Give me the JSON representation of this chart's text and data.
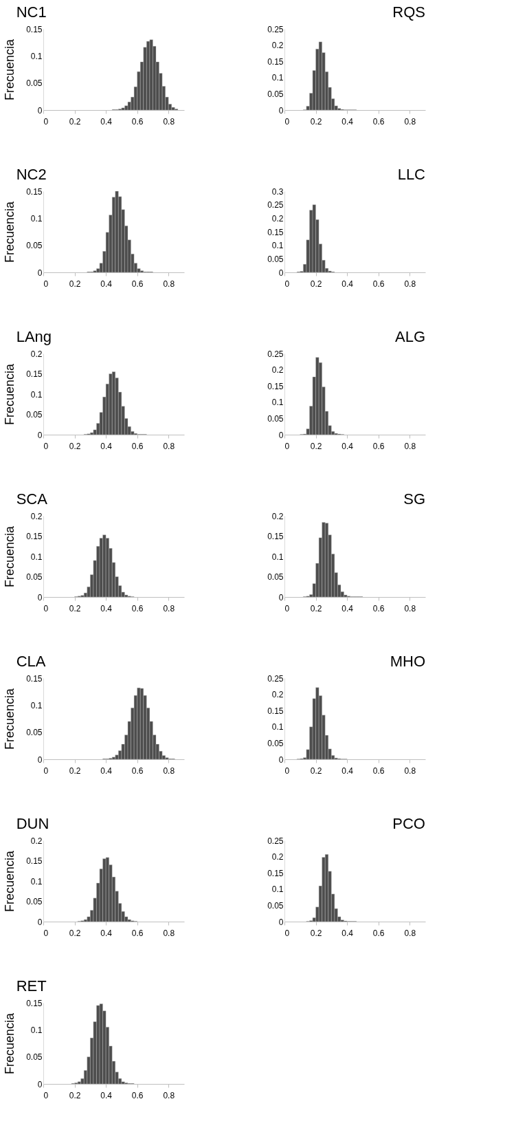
{
  "chart_data": [
    {
      "type": "histogram",
      "title": "NC1",
      "ylabel": "Frecuencia",
      "color": "#4d4d4d",
      "xlim": [
        0,
        0.9
      ],
      "xticks": [
        0,
        0.2,
        0.4,
        0.6,
        0.8
      ],
      "ylim": [
        0,
        0.15
      ],
      "yticks": [
        0,
        0.05,
        0.1,
        0.15
      ],
      "bins": [
        0.44,
        0.46,
        0.48,
        0.5,
        0.52,
        0.54,
        0.56,
        0.58,
        0.6,
        0.62,
        0.64,
        0.66,
        0.68,
        0.7,
        0.72,
        0.74,
        0.76,
        0.78,
        0.8,
        0.82,
        0.84,
        0.86
      ],
      "values": [
        0.001,
        0.001,
        0.002,
        0.004,
        0.008,
        0.015,
        0.024,
        0.043,
        0.071,
        0.089,
        0.116,
        0.127,
        0.13,
        0.118,
        0.089,
        0.068,
        0.044,
        0.024,
        0.011,
        0.005,
        0.002
      ]
    },
    {
      "type": "histogram",
      "title": "RQS",
      "color": "#4d4d4d",
      "xlim": [
        0,
        0.9
      ],
      "xticks": [
        0,
        0.2,
        0.4,
        0.6,
        0.8
      ],
      "ylim": [
        0,
        0.25
      ],
      "yticks": [
        0,
        0.05,
        0.1,
        0.15,
        0.2,
        0.25
      ],
      "bins": [
        0.12,
        0.14,
        0.16,
        0.18,
        0.2,
        0.22,
        0.24,
        0.26,
        0.28,
        0.3,
        0.32,
        0.34,
        0.36,
        0.38,
        0.4,
        0.42,
        0.44,
        0.46
      ],
      "values": [
        0.001,
        0.012,
        0.052,
        0.122,
        0.188,
        0.21,
        0.177,
        0.118,
        0.07,
        0.035,
        0.013,
        0.005,
        0.002,
        0.001,
        0.001,
        0.001,
        0.001
      ]
    },
    {
      "type": "histogram",
      "title": "NC2",
      "ylabel": "Frecuencia",
      "color": "#4d4d4d",
      "xlim": [
        0,
        0.9
      ],
      "xticks": [
        0,
        0.2,
        0.4,
        0.6,
        0.8
      ],
      "ylim": [
        0,
        0.15
      ],
      "yticks": [
        0,
        0.05,
        0.1,
        0.15
      ],
      "bins": [
        0.28,
        0.3,
        0.32,
        0.34,
        0.36,
        0.38,
        0.4,
        0.42,
        0.44,
        0.46,
        0.48,
        0.5,
        0.52,
        0.54,
        0.56,
        0.58,
        0.6,
        0.62,
        0.64,
        0.66,
        0.68,
        0.7
      ],
      "values": [
        0.001,
        0.001,
        0.003,
        0.007,
        0.017,
        0.039,
        0.074,
        0.106,
        0.139,
        0.15,
        0.14,
        0.116,
        0.086,
        0.06,
        0.034,
        0.017,
        0.007,
        0.003,
        0.001,
        0.001,
        0.001
      ]
    },
    {
      "type": "histogram",
      "title": "LLC",
      "color": "#4d4d4d",
      "xlim": [
        0,
        0.9
      ],
      "xticks": [
        0,
        0.2,
        0.4,
        0.6,
        0.8
      ],
      "ylim": [
        0,
        0.3
      ],
      "yticks": [
        0,
        0.05,
        0.1,
        0.15,
        0.2,
        0.25,
        0.3
      ],
      "bins": [
        0.08,
        0.1,
        0.12,
        0.14,
        0.16,
        0.18,
        0.2,
        0.22,
        0.24,
        0.26,
        0.28,
        0.3,
        0.32,
        0.34,
        0.36
      ],
      "values": [
        0.002,
        0.004,
        0.03,
        0.12,
        0.23,
        0.25,
        0.195,
        0.105,
        0.045,
        0.015,
        0.005,
        0.002,
        null,
        null
      ]
    },
    {
      "type": "histogram",
      "title": "LAng",
      "ylabel": "Frecuencia",
      "color": "#4d4d4d",
      "xlim": [
        0,
        0.9
      ],
      "xticks": [
        0,
        0.2,
        0.4,
        0.6,
        0.8
      ],
      "ylim": [
        0,
        0.2
      ],
      "yticks": [
        0,
        0.05,
        0.1,
        0.15,
        0.2
      ],
      "bins": [
        0.26,
        0.28,
        0.3,
        0.32,
        0.34,
        0.36,
        0.38,
        0.4,
        0.42,
        0.44,
        0.46,
        0.48,
        0.5,
        0.52,
        0.54,
        0.56,
        0.58,
        0.6,
        0.62,
        0.64,
        0.66
      ],
      "values": [
        0.001,
        0.002,
        0.005,
        0.012,
        0.028,
        0.055,
        0.093,
        0.125,
        0.15,
        0.155,
        0.14,
        0.105,
        0.07,
        0.04,
        0.02,
        0.008,
        0.003,
        0.001,
        0.001,
        0.001
      ]
    },
    {
      "type": "histogram",
      "title": "ALG",
      "color": "#4d4d4d",
      "xlim": [
        0,
        0.9
      ],
      "xticks": [
        0,
        0.2,
        0.4,
        0.6,
        0.8
      ],
      "ylim": [
        0,
        0.25
      ],
      "yticks": [
        0,
        0.05,
        0.1,
        0.15,
        0.2,
        0.25
      ],
      "bins": [
        0.1,
        0.12,
        0.14,
        0.16,
        0.18,
        0.2,
        0.22,
        0.24,
        0.26,
        0.28,
        0.3,
        0.32,
        0.34,
        0.36,
        0.38
      ],
      "values": [
        0.001,
        0.002,
        0.018,
        0.088,
        0.178,
        0.238,
        0.222,
        0.147,
        0.072,
        0.028,
        0.01,
        0.004,
        0.002,
        0.001
      ]
    },
    {
      "type": "histogram",
      "title": "SCA",
      "ylabel": "Frecuencia",
      "color": "#4d4d4d",
      "xlim": [
        0,
        0.9
      ],
      "xticks": [
        0,
        0.2,
        0.4,
        0.6,
        0.8
      ],
      "ylim": [
        0,
        0.2
      ],
      "yticks": [
        0,
        0.05,
        0.1,
        0.15,
        0.2
      ],
      "bins": [
        0.2,
        0.22,
        0.24,
        0.26,
        0.28,
        0.3,
        0.32,
        0.34,
        0.36,
        0.38,
        0.4,
        0.42,
        0.44,
        0.46,
        0.48,
        0.5,
        0.52,
        0.54,
        0.56,
        0.58
      ],
      "values": [
        0.001,
        0.002,
        0.004,
        0.01,
        0.025,
        0.055,
        0.09,
        0.125,
        0.145,
        0.153,
        0.145,
        0.12,
        0.085,
        0.05,
        0.028,
        0.012,
        0.005,
        0.002,
        0.001
      ]
    },
    {
      "type": "histogram",
      "title": "SG",
      "color": "#4d4d4d",
      "xlim": [
        0,
        0.9
      ],
      "xticks": [
        0,
        0.2,
        0.4,
        0.6,
        0.8
      ],
      "ylim": [
        0,
        0.2
      ],
      "yticks": [
        0,
        0.05,
        0.1,
        0.15,
        0.2
      ],
      "bins": [
        0.12,
        0.14,
        0.16,
        0.18,
        0.2,
        0.22,
        0.24,
        0.26,
        0.28,
        0.3,
        0.32,
        0.34,
        0.36,
        0.38,
        0.4,
        0.42,
        0.44,
        0.46,
        0.48,
        0.5
      ],
      "values": [
        0.001,
        0.002,
        0.006,
        0.033,
        0.083,
        0.146,
        0.184,
        0.182,
        0.153,
        0.106,
        0.06,
        0.03,
        0.013,
        0.005,
        0.002,
        0.001,
        0.001,
        0.001,
        0.001
      ]
    },
    {
      "type": "histogram",
      "title": "CLA",
      "ylabel": "Frecuencia",
      "color": "#4d4d4d",
      "xlim": [
        0,
        0.9
      ],
      "xticks": [
        0,
        0.2,
        0.4,
        0.6,
        0.8
      ],
      "ylim": [
        0,
        0.15
      ],
      "yticks": [
        0,
        0.05,
        0.1,
        0.15
      ],
      "bins": [
        0.38,
        0.4,
        0.42,
        0.44,
        0.46,
        0.48,
        0.5,
        0.52,
        0.54,
        0.56,
        0.58,
        0.6,
        0.62,
        0.64,
        0.66,
        0.68,
        0.7,
        0.72,
        0.74,
        0.76,
        0.78,
        0.8,
        0.82,
        0.84
      ],
      "values": [
        0.001,
        0.001,
        0.002,
        0.004,
        0.008,
        0.016,
        0.028,
        0.045,
        0.07,
        0.095,
        0.118,
        0.132,
        0.131,
        0.118,
        0.095,
        0.07,
        0.045,
        0.028,
        0.015,
        0.007,
        0.003,
        0.001,
        0.001
      ]
    },
    {
      "type": "histogram",
      "title": "MHO",
      "color": "#4d4d4d",
      "xlim": [
        0,
        0.9
      ],
      "xticks": [
        0,
        0.2,
        0.4,
        0.6,
        0.8
      ],
      "ylim": [
        0,
        0.25
      ],
      "yticks": [
        0,
        0.05,
        0.1,
        0.15,
        0.2,
        0.25
      ],
      "bins": [
        0.08,
        0.1,
        0.12,
        0.14,
        0.16,
        0.18,
        0.2,
        0.22,
        0.24,
        0.26,
        0.28,
        0.3,
        0.32,
        0.34,
        0.36,
        0.38,
        0.4
      ],
      "values": [
        0.001,
        0.002,
        0.005,
        0.03,
        0.1,
        0.187,
        0.221,
        0.196,
        0.136,
        0.074,
        0.032,
        0.012,
        0.004,
        0.002,
        0.001,
        0.001
      ]
    },
    {
      "type": "histogram",
      "title": "DUN",
      "ylabel": "Frecuencia",
      "color": "#4d4d4d",
      "xlim": [
        0,
        0.9
      ],
      "xticks": [
        0,
        0.2,
        0.4,
        0.6,
        0.8
      ],
      "ylim": [
        0,
        0.2
      ],
      "yticks": [
        0,
        0.05,
        0.1,
        0.15,
        0.2
      ],
      "bins": [
        0.22,
        0.24,
        0.26,
        0.28,
        0.3,
        0.32,
        0.34,
        0.36,
        0.38,
        0.4,
        0.42,
        0.44,
        0.46,
        0.48,
        0.5,
        0.52,
        0.54,
        0.56,
        0.58,
        0.6
      ],
      "values": [
        0.001,
        0.002,
        0.005,
        0.012,
        0.028,
        0.058,
        0.095,
        0.13,
        0.155,
        0.158,
        0.14,
        0.11,
        0.075,
        0.045,
        0.025,
        0.012,
        0.005,
        0.002,
        0.001
      ]
    },
    {
      "type": "histogram",
      "title": "PCO",
      "color": "#4d4d4d",
      "xlim": [
        0,
        0.9
      ],
      "xticks": [
        0,
        0.2,
        0.4,
        0.6,
        0.8
      ],
      "ylim": [
        0,
        0.25
      ],
      "yticks": [
        0,
        0.05,
        0.1,
        0.15,
        0.2,
        0.25
      ],
      "bins": [
        0.14,
        0.16,
        0.18,
        0.2,
        0.22,
        0.24,
        0.26,
        0.28,
        0.3,
        0.32,
        0.34,
        0.36,
        0.38,
        0.4,
        0.42,
        0.44,
        0.46
      ],
      "values": [
        0.001,
        0.003,
        0.012,
        0.045,
        0.11,
        0.198,
        0.207,
        0.155,
        0.085,
        0.04,
        0.015,
        0.005,
        0.002,
        0.001,
        0.001,
        0.001
      ]
    },
    {
      "type": "histogram",
      "title": "RET",
      "ylabel": "Frecuencia",
      "color": "#4d4d4d",
      "xlim": [
        0,
        0.9
      ],
      "xticks": [
        0,
        0.2,
        0.4,
        0.6,
        0.8
      ],
      "ylim": [
        0,
        0.15
      ],
      "yticks": [
        0,
        0.05,
        0.1,
        0.15
      ],
      "bins": [
        0.18,
        0.2,
        0.22,
        0.24,
        0.26,
        0.28,
        0.3,
        0.32,
        0.34,
        0.36,
        0.38,
        0.4,
        0.42,
        0.44,
        0.46,
        0.48,
        0.5,
        0.52,
        0.54,
        0.56,
        0.58
      ],
      "values": [
        0.001,
        0.002,
        0.004,
        0.01,
        0.025,
        0.05,
        0.085,
        0.115,
        0.145,
        0.148,
        0.135,
        0.105,
        0.07,
        0.042,
        0.022,
        0.01,
        0.004,
        0.002,
        0.001,
        0.001
      ]
    }
  ]
}
